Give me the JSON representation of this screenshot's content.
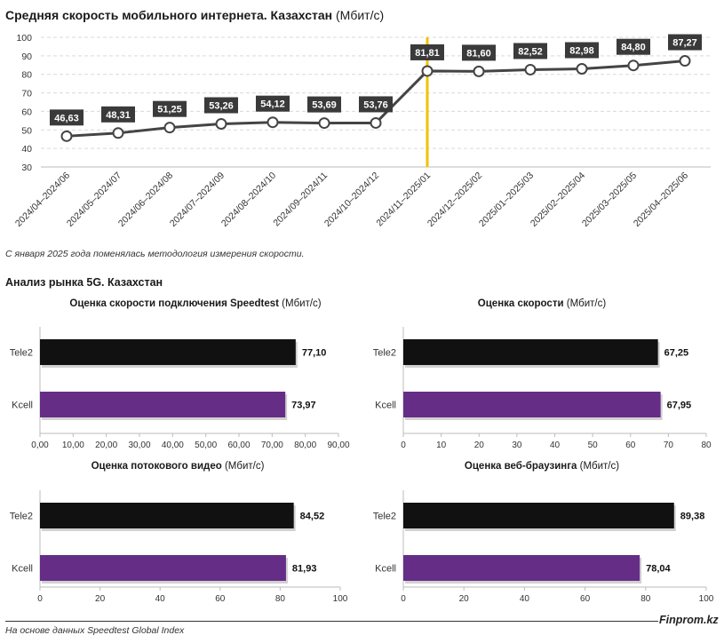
{
  "header": {
    "title_bold": "Средняя скорость мобильного интернета. Казахстан",
    "title_unit": "(Мбит/с)"
  },
  "note": "С января 2025 года поменялась методология измерения скорости.",
  "section_title": "Анализ рынка 5G. Казахстан",
  "footer": {
    "source": "На основе данных Speedtest Global Index",
    "brand": "Finprom.kz"
  },
  "colors": {
    "line": "#444444",
    "marker_fill": "#ffffff",
    "label_bg": "#3a3a3a",
    "divider": "#f2c200",
    "tele2": "#111111",
    "kcell": "#662d87",
    "grid": "#d9d9d9"
  },
  "chart_data": [
    {
      "type": "line",
      "title": "Средняя скорость мобильного интернета. Казахстан (Мбит/с)",
      "categories": [
        "2024/04–2024/06",
        "2024/05–2024/07",
        "2024/06–2024/08",
        "2024/07–2024/09",
        "2024/08–2024/10",
        "2024/09–2024/11",
        "2024/10–2024/12",
        "2024/11–2025/01",
        "2024/12–2025/02",
        "2025/01–2025/03",
        "2025/02–2025/04",
        "2025/03–2025/05",
        "2025/04–2025/06"
      ],
      "values": [
        46.63,
        48.31,
        51.25,
        53.26,
        54.12,
        53.69,
        53.76,
        81.81,
        81.6,
        82.52,
        82.98,
        84.8,
        87.27
      ],
      "value_labels": [
        "46,63",
        "48,31",
        "51,25",
        "53,26",
        "54,12",
        "53,69",
        "53,76",
        "81,81",
        "81,60",
        "82,52",
        "82,98",
        "84,80",
        "87,27"
      ],
      "ylim": [
        30,
        100
      ],
      "yticks": [
        30,
        40,
        50,
        60,
        70,
        80,
        90,
        100
      ],
      "grid": true,
      "divider_after_index": 7
    },
    {
      "type": "bar",
      "title_bold": "Оценка скорости подключения Speedtest",
      "title_unit": "(Мбит/с)",
      "categories": [
        "Tele2",
        "Kcell"
      ],
      "values": [
        77.1,
        73.97
      ],
      "value_labels": [
        "77,10",
        "73,97"
      ],
      "xlim": [
        0,
        90
      ],
      "xticks": [
        "0,00",
        "10,00",
        "20,00",
        "30,00",
        "40,00",
        "50,00",
        "60,00",
        "70,00",
        "80,00",
        "90,00"
      ]
    },
    {
      "type": "bar",
      "title_bold": "Оценка скорости",
      "title_unit": "(Мбит/с)",
      "categories": [
        "Tele2",
        "Kcell"
      ],
      "values": [
        67.25,
        67.95
      ],
      "value_labels": [
        "67,25",
        "67,95"
      ],
      "xlim": [
        0,
        80
      ],
      "xticks": [
        "0",
        "10",
        "20",
        "30",
        "40",
        "50",
        "60",
        "70",
        "80"
      ]
    },
    {
      "type": "bar",
      "title_bold": "Оценка потокового видео",
      "title_unit": "(Мбит/с)",
      "categories": [
        "Tele2",
        "Kcell"
      ],
      "values": [
        84.52,
        81.93
      ],
      "value_labels": [
        "84,52",
        "81,93"
      ],
      "xlim": [
        0,
        100
      ],
      "xticks": [
        "0",
        "20",
        "40",
        "60",
        "80",
        "100"
      ]
    },
    {
      "type": "bar",
      "title_bold": "Оценка веб-браузинга",
      "title_unit": "(Мбит/с)",
      "categories": [
        "Tele2",
        "Kcell"
      ],
      "values": [
        89.38,
        78.04
      ],
      "value_labels": [
        "89,38",
        "78,04"
      ],
      "xlim": [
        0,
        100
      ],
      "xticks": [
        "0",
        "20",
        "40",
        "60",
        "80",
        "100"
      ]
    }
  ]
}
